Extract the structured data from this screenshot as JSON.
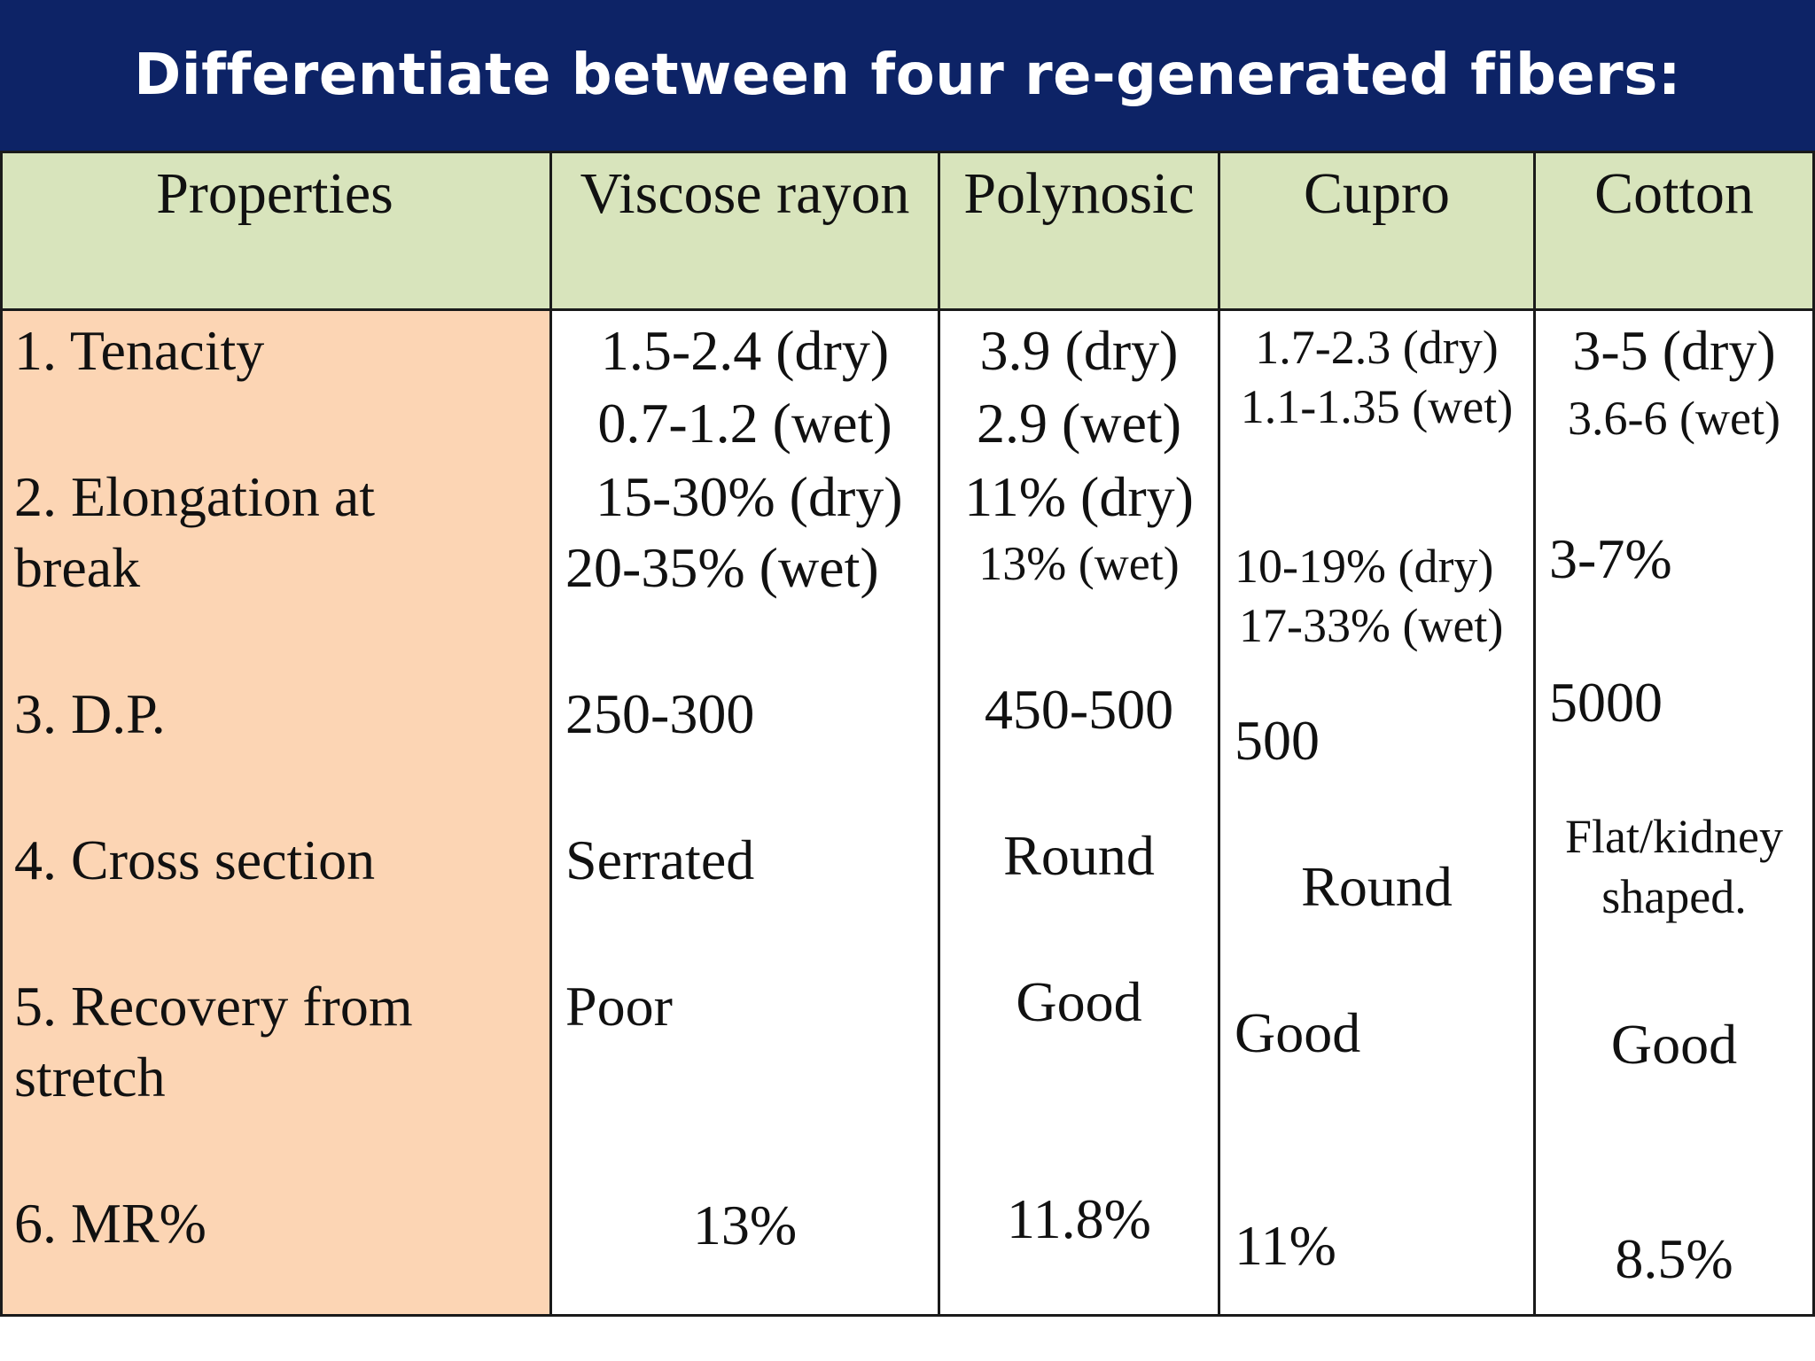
{
  "title": "Differentiate between four re-generated fibers:",
  "header": {
    "properties": "Properties",
    "viscose": "Viscose rayon",
    "polynosic": "Polynosic",
    "cupro": "Cupro",
    "cotton": "Cotton"
  },
  "rows": {
    "tenacity": {
      "label": "1.   Tenacity",
      "viscose": [
        "1.5-2.4 (dry)",
        "0.7-1.2 (wet)"
      ],
      "polynosic": [
        "3.9 (dry)",
        "2.9 (wet)"
      ],
      "cupro": [
        "1.7-2.3 (dry)",
        "1.1-1.35 (wet)"
      ],
      "cotton": [
        "3-5 (dry)",
        "3.6-6 (wet)"
      ]
    },
    "elongation": {
      "label": [
        "2. Elongation at",
        "break"
      ],
      "viscose": [
        "15-30% (dry)",
        "20-35% (wet)"
      ],
      "polynosic": [
        "11% (dry)",
        "13% (wet)"
      ],
      "cupro": [
        "10-19% (dry)",
        "17-33% (wet)"
      ],
      "cotton": "3-7%"
    },
    "dp": {
      "label": "3. D.P.",
      "viscose": "250-300",
      "polynosic": "450-500",
      "cupro": "500",
      "cotton": "5000"
    },
    "cross_section": {
      "label": "4. Cross section",
      "viscose": "Serrated",
      "polynosic": "Round",
      "cupro": "Round",
      "cotton": [
        "Flat/kidney",
        "shaped."
      ]
    },
    "recovery": {
      "label": [
        "5. Recovery from",
        "stretch"
      ],
      "viscose": "Poor",
      "polynosic": "Good",
      "cupro": "Good",
      "cotton": "Good"
    },
    "mr": {
      "label": "6. MR%",
      "viscose": "13%",
      "polynosic": "11.8%",
      "cupro": "11%",
      "cotton": "8.5%"
    }
  },
  "colors": {
    "title_bg": "#0d2366",
    "header_bg": "#d8e4bc",
    "properties_bg": "#fcd5b4",
    "border": "#1a1a1a"
  }
}
